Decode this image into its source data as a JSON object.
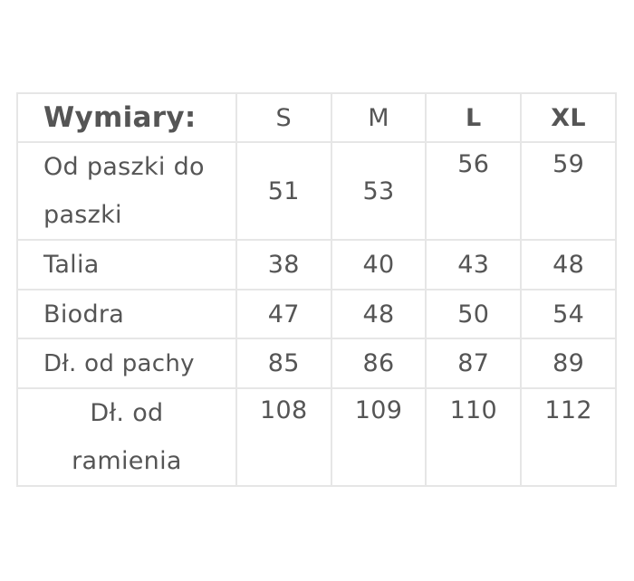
{
  "table": {
    "header": {
      "label": "Wymiary:",
      "sizes": [
        "S",
        "M",
        "L",
        "XL"
      ]
    },
    "rows": [
      {
        "label": "Od paszki do paszki",
        "values": [
          "51",
          "53",
          "56",
          "59"
        ]
      },
      {
        "label": "Talia",
        "values": [
          "38",
          "40",
          "43",
          "48"
        ]
      },
      {
        "label": "Biodra",
        "values": [
          "47",
          "48",
          "50",
          "54"
        ]
      },
      {
        "label": "Dł. od pachy",
        "values": [
          "85",
          "86",
          "87",
          "89"
        ]
      },
      {
        "label": "Dł. od ramienia",
        "values": [
          "108",
          "109",
          "110",
          "112"
        ]
      }
    ]
  }
}
